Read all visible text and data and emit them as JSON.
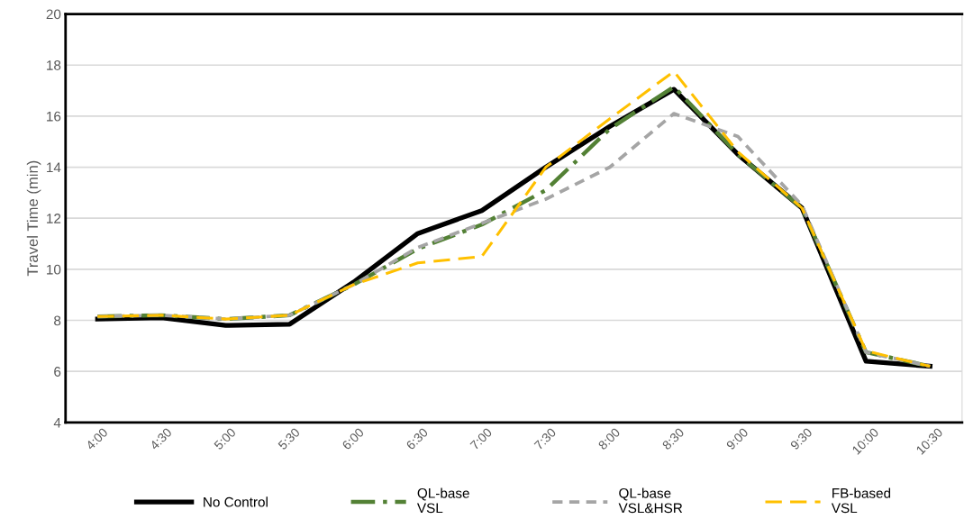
{
  "chart_data": {
    "type": "line",
    "ylabel": "Travel Time (min)",
    "categories": [
      "4:00",
      "4:30",
      "5:00",
      "5:30",
      "6:00",
      "6:30",
      "7:00",
      "7:30",
      "8:00",
      "8:30",
      "9:00",
      "9:30",
      "10:00",
      "10:30"
    ],
    "series": [
      {
        "name": "No Control",
        "color": "#000000",
        "line_style": "solid",
        "values": [
          8.05,
          8.1,
          7.8,
          7.85,
          9.5,
          11.4,
          12.3,
          14.0,
          15.6,
          17.05,
          14.5,
          12.4,
          6.4,
          6.2
        ]
      },
      {
        "name": "QL-base\nVSL",
        "color": "#538135",
        "line_style": "dashdot",
        "values": [
          8.15,
          8.2,
          8.05,
          8.2,
          9.4,
          10.8,
          11.75,
          13.1,
          15.5,
          17.15,
          14.5,
          12.4,
          6.75,
          6.2
        ]
      },
      {
        "name": "QL-base\nVSL&HSR",
        "color": "#a5a5a5",
        "line_style": "dashed",
        "values": [
          8.15,
          8.2,
          8.05,
          8.2,
          9.4,
          10.85,
          11.8,
          12.75,
          14.0,
          16.1,
          15.2,
          12.5,
          6.75,
          6.2
        ]
      },
      {
        "name": "FB-based\nVSL",
        "color": "#ffc000",
        "line_style": "longdash",
        "values": [
          8.15,
          8.2,
          8.05,
          8.2,
          9.4,
          10.25,
          10.5,
          14.0,
          15.9,
          17.75,
          14.6,
          12.4,
          6.8,
          6.2
        ]
      }
    ],
    "ylim": [
      4,
      20
    ],
    "yticks": [
      4,
      6,
      8,
      10,
      12,
      14,
      16,
      18,
      20
    ],
    "grid": "y",
    "legend": "bottom",
    "marker": "none"
  }
}
